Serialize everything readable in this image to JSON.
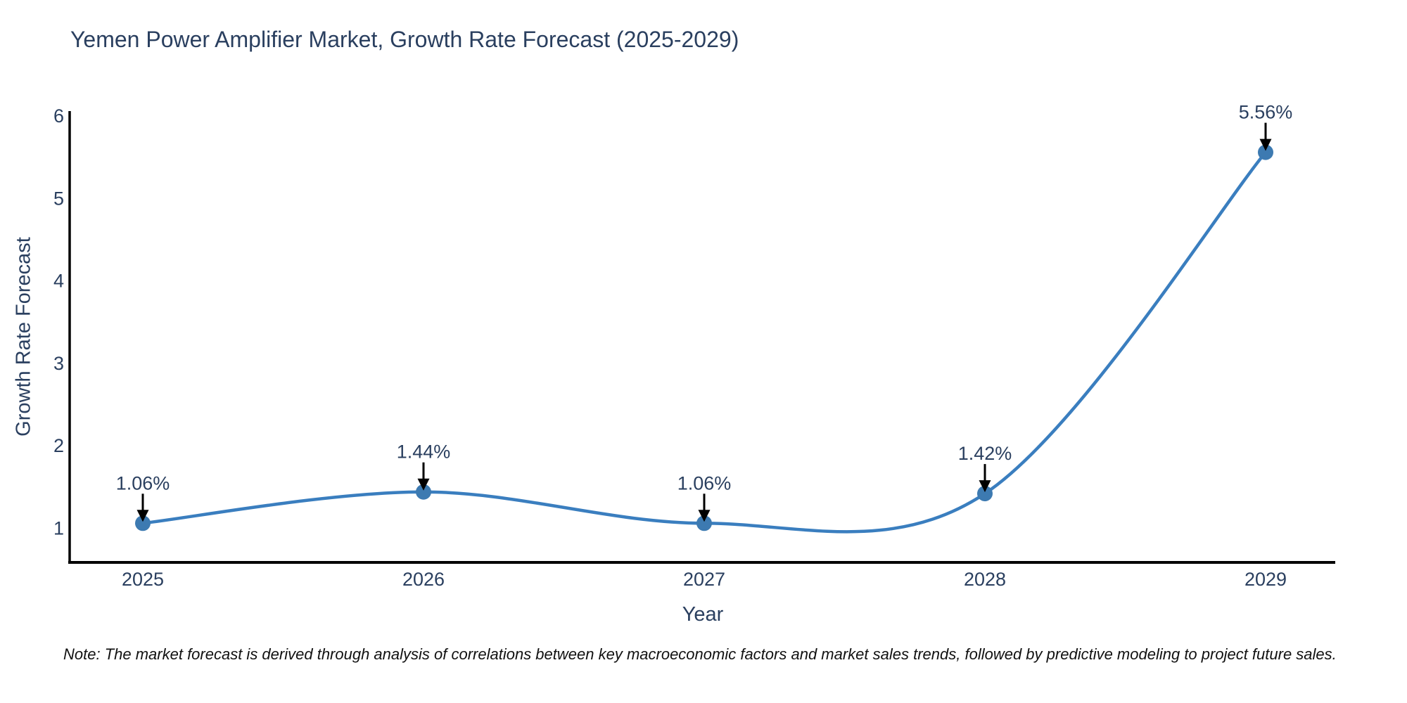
{
  "chart_data": {
    "type": "line",
    "title": "Yemen Power Amplifier Market, Growth Rate Forecast (2025-2029)",
    "xlabel": "Year",
    "ylabel": "Growth Rate Forecast",
    "categories": [
      "2025",
      "2026",
      "2027",
      "2028",
      "2029"
    ],
    "series": [
      {
        "name": "Growth Rate Forecast",
        "values": [
          1.06,
          1.44,
          1.06,
          1.42,
          5.56
        ],
        "point_labels": [
          "1.06%",
          "1.44%",
          "1.06%",
          "1.42%",
          "5.56%"
        ]
      }
    ],
    "yticks": [
      1,
      2,
      3,
      4,
      5,
      6
    ],
    "ylim": [
      0.585,
      6.06
    ],
    "grid": false,
    "legend": "none",
    "line_shape": "spline",
    "colors": {
      "line": "#3a7ebf",
      "marker": "#3d7ab1",
      "axis": "#000000",
      "text": "#2a3f5f",
      "annotation_arrow": "#000000",
      "note_text": "#111111",
      "background": "#ffffff"
    },
    "note": "Note: The market forecast is derived through analysis of correlations between key macroeconomic factors and market sales trends, followed by predictive modeling to project future sales."
  }
}
